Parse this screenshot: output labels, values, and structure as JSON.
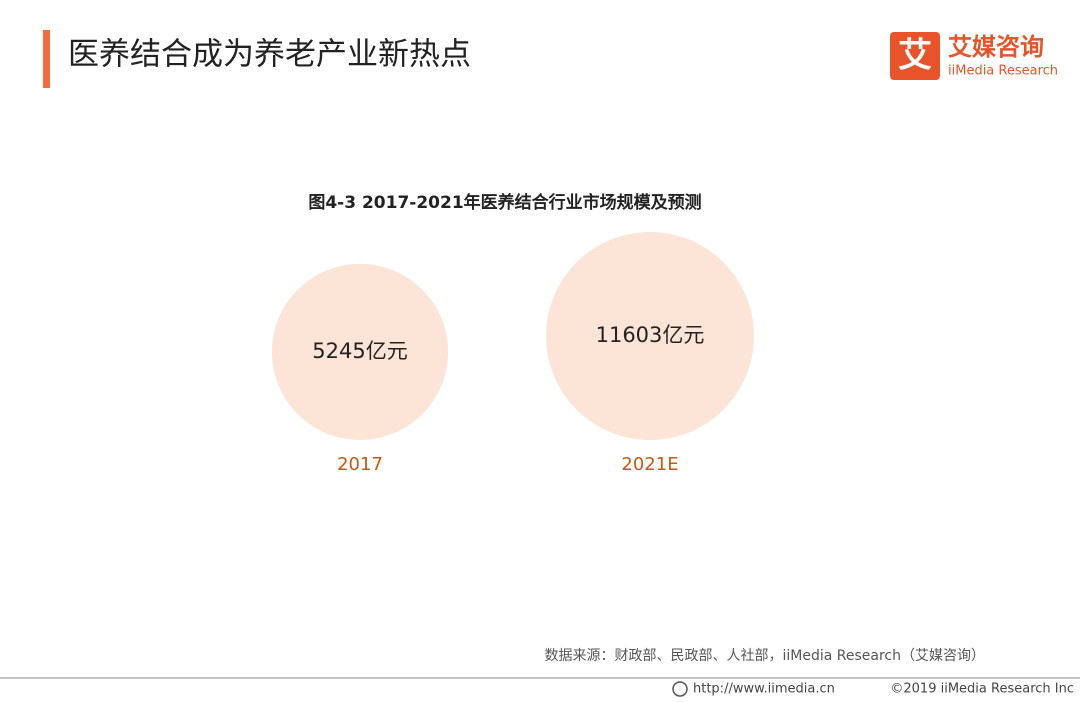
{
  "header": {
    "title": "医养结合成为养老产业新热点",
    "logo": {
      "mark": "艾",
      "name": "艾媒咨询",
      "subtitle": "iiMedia Research"
    }
  },
  "chart_data": {
    "type": "bubble",
    "title": "图4-3 2017-2021年医养结合行业市场规模及预测",
    "categories": [
      "2017",
      "2021E"
    ],
    "values": [
      5245,
      11603
    ],
    "value_labels": [
      "5245亿元",
      "11603亿元"
    ],
    "color": "#fce4d6",
    "label_color": "#c55a11"
  },
  "source": "数据来源：财政部、民政部、人社部，iiMedia Research（艾媒咨询）",
  "footer": {
    "url": "http://www.iimedia.cn",
    "copyright": "©2019 iiMedia Research Inc"
  }
}
